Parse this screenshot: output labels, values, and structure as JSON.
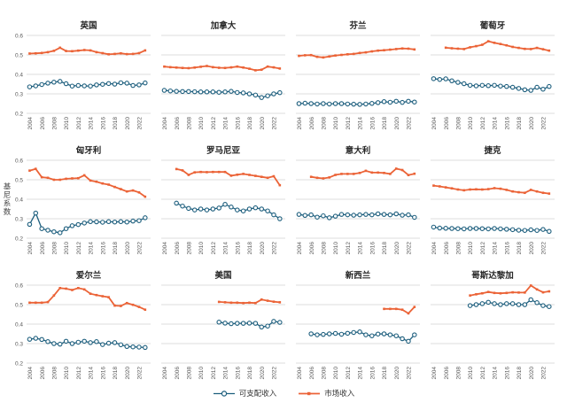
{
  "figure": {
    "legend": [
      {
        "label": "可支配收入",
        "marker": "open-circle",
        "color": "#1E5F7E"
      },
      {
        "label": "市场收入",
        "marker": "square-dash",
        "color": "#EB6337"
      }
    ],
    "colors": {
      "disposable": "#1E5F7E",
      "market": "#EB6337",
      "marker_fill": "#FFFFFF",
      "gridline": "#DEDEDE",
      "tick_text": "#595959",
      "title_text": "#262626",
      "background": "#FFFFFF"
    }
  },
  "chart_data": {
    "type": "line",
    "ylabel": "基尼系数",
    "ylim": [
      0.2,
      0.6
    ],
    "xlim": [
      2003.5,
      2023.9
    ],
    "y_ticks": [
      "0.6",
      "0.5",
      "0.4",
      "0.3",
      "0.2"
    ],
    "x_ticks": [
      2004,
      2006,
      2008,
      2010,
      2012,
      2014,
      2016,
      2018,
      2020,
      2022
    ],
    "grid": true,
    "legend_position": "bottom-center",
    "series_names": {
      "disposable": "可支配收入",
      "market": "市场收入"
    },
    "panels": [
      {
        "title": "英国",
        "series": [
          {
            "key": "disposable",
            "name": "可支配收入",
            "start_year": 2004,
            "values": [
              0.336,
              0.341,
              0.348,
              0.355,
              0.36,
              0.364,
              0.352,
              0.34,
              0.343,
              0.341,
              0.34,
              0.346,
              0.349,
              0.353,
              0.35,
              0.357,
              0.355,
              0.343,
              0.346,
              0.356
            ]
          },
          {
            "key": "market",
            "name": "市场收入",
            "start_year": 2004,
            "values": [
              0.507,
              0.508,
              0.51,
              0.514,
              0.521,
              0.537,
              0.52,
              0.519,
              0.522,
              0.525,
              0.523,
              0.514,
              0.509,
              0.503,
              0.505,
              0.508,
              0.504,
              0.505,
              0.509,
              0.523
            ]
          }
        ]
      },
      {
        "title": "加拿大",
        "series": [
          {
            "key": "disposable",
            "name": "可支配收入",
            "start_year": 2004,
            "values": [
              0.318,
              0.315,
              0.313,
              0.312,
              0.312,
              0.311,
              0.31,
              0.31,
              0.31,
              0.308,
              0.31,
              0.313,
              0.307,
              0.305,
              0.3,
              0.294,
              0.281,
              0.29,
              0.3,
              0.306
            ]
          },
          {
            "key": "market",
            "name": "市场收入",
            "start_year": 2004,
            "values": [
              0.44,
              0.437,
              0.435,
              0.433,
              0.432,
              0.435,
              0.439,
              0.443,
              0.437,
              0.434,
              0.433,
              0.436,
              0.44,
              0.435,
              0.429,
              0.421,
              0.424,
              0.44,
              0.436,
              0.43
            ]
          }
        ]
      },
      {
        "title": "芬兰",
        "series": [
          {
            "key": "disposable",
            "name": "可支配收入",
            "start_year": 2004,
            "values": [
              0.25,
              0.252,
              0.25,
              0.248,
              0.25,
              0.248,
              0.25,
              0.25,
              0.248,
              0.247,
              0.246,
              0.248,
              0.251,
              0.255,
              0.26,
              0.257,
              0.262,
              0.256,
              0.262,
              0.258
            ]
          },
          {
            "key": "market",
            "name": "市场收入",
            "start_year": 2004,
            "values": [
              0.495,
              0.498,
              0.499,
              0.49,
              0.487,
              0.492,
              0.497,
              0.5,
              0.503,
              0.505,
              0.51,
              0.513,
              0.518,
              0.522,
              0.524,
              0.527,
              0.53,
              0.533,
              0.532,
              0.528
            ]
          }
        ]
      },
      {
        "title": "葡萄牙",
        "series": [
          {
            "key": "disposable",
            "name": "可支配收入",
            "start_year": 2004,
            "values": [
              0.378,
              0.374,
              0.377,
              0.367,
              0.359,
              0.352,
              0.344,
              0.341,
              0.344,
              0.342,
              0.344,
              0.34,
              0.338,
              0.334,
              0.328,
              0.321,
              0.318,
              0.334,
              0.324,
              0.338
            ]
          },
          {
            "key": "market",
            "name": "市场收入",
            "start_year": 2006,
            "values": [
              0.537,
              0.534,
              0.532,
              0.53,
              0.539,
              0.545,
              0.552,
              0.57,
              0.562,
              0.556,
              0.549,
              0.541,
              0.536,
              0.531,
              0.53,
              0.536,
              0.529,
              0.522
            ]
          }
        ]
      },
      {
        "title": "匈牙利",
        "series": [
          {
            "key": "disposable",
            "name": "可支配收入",
            "start_year": 2004,
            "values": [
              0.271,
              0.329,
              0.249,
              0.241,
              0.233,
              0.228,
              0.249,
              0.264,
              0.27,
              0.278,
              0.285,
              0.284,
              0.282,
              0.285,
              0.283,
              0.285,
              0.283,
              0.288,
              0.29,
              0.305
            ]
          },
          {
            "key": "market",
            "name": "市场收入",
            "start_year": 2004,
            "values": [
              0.547,
              0.556,
              0.513,
              0.51,
              0.5,
              0.5,
              0.505,
              0.507,
              0.508,
              0.523,
              0.496,
              0.49,
              0.481,
              0.475,
              0.463,
              0.452,
              0.44,
              0.445,
              0.435,
              0.413
            ]
          }
        ]
      },
      {
        "title": "罗马尼亚",
        "series": [
          {
            "key": "disposable",
            "name": "可支配收入",
            "start_year": 2006,
            "values": [
              0.38,
              0.365,
              0.353,
              0.345,
              0.35,
              0.345,
              0.35,
              0.355,
              0.374,
              0.36,
              0.345,
              0.34,
              0.35,
              0.356,
              0.35,
              0.34,
              0.32,
              0.3
            ]
          },
          {
            "key": "market",
            "name": "市场收入",
            "start_year": 2006,
            "values": [
              0.555,
              0.548,
              0.525,
              0.538,
              0.54,
              0.539,
              0.54,
              0.54,
              0.54,
              0.521,
              0.526,
              0.53,
              0.525,
              0.52,
              0.515,
              0.51,
              0.518,
              0.472
            ]
          }
        ]
      },
      {
        "title": "意大利",
        "series": [
          {
            "key": "disposable",
            "name": "可支配收入",
            "start_year": 2004,
            "values": [
              0.322,
              0.317,
              0.32,
              0.308,
              0.315,
              0.305,
              0.313,
              0.322,
              0.32,
              0.318,
              0.32,
              0.322,
              0.32,
              0.325,
              0.322,
              0.32,
              0.325,
              0.318,
              0.32,
              0.307
            ]
          },
          {
            "key": "market",
            "name": "市场收入",
            "start_year": 2006,
            "values": [
              0.515,
              0.51,
              0.507,
              0.512,
              0.525,
              0.53,
              0.53,
              0.53,
              0.535,
              0.546,
              0.537,
              0.537,
              0.535,
              0.53,
              0.557,
              0.55,
              0.524,
              0.531
            ]
          }
        ]
      },
      {
        "title": "捷克",
        "series": [
          {
            "key": "disposable",
            "name": "可支配收入",
            "start_year": 2004,
            "values": [
              0.257,
              0.252,
              0.251,
              0.25,
              0.249,
              0.248,
              0.25,
              0.25,
              0.249,
              0.248,
              0.25,
              0.248,
              0.246,
              0.244,
              0.241,
              0.24,
              0.243,
              0.24,
              0.245,
              0.235
            ]
          },
          {
            "key": "market",
            "name": "市场收入",
            "start_year": 2004,
            "values": [
              0.47,
              0.466,
              0.461,
              0.456,
              0.45,
              0.446,
              0.45,
              0.451,
              0.45,
              0.452,
              0.457,
              0.454,
              0.448,
              0.44,
              0.436,
              0.433,
              0.448,
              0.44,
              0.433,
              0.429
            ]
          }
        ]
      },
      {
        "title": "爱尔兰",
        "series": [
          {
            "key": "disposable",
            "name": "可支配收入",
            "start_year": 2004,
            "values": [
              0.322,
              0.327,
              0.321,
              0.31,
              0.3,
              0.297,
              0.312,
              0.3,
              0.307,
              0.312,
              0.305,
              0.31,
              0.295,
              0.302,
              0.305,
              0.294,
              0.285,
              0.283,
              0.282,
              0.28
            ]
          },
          {
            "key": "market",
            "name": "市场收入",
            "start_year": 2004,
            "values": [
              0.51,
              0.51,
              0.51,
              0.513,
              0.547,
              0.585,
              0.582,
              0.575,
              0.585,
              0.578,
              0.556,
              0.549,
              0.543,
              0.538,
              0.495,
              0.493,
              0.508,
              0.499,
              0.488,
              0.474
            ]
          }
        ]
      },
      {
        "title": "美国",
        "series": [
          {
            "key": "disposable",
            "name": "可支配收入",
            "start_year": 2013,
            "values": [
              0.41,
              0.405,
              0.402,
              0.404,
              0.404,
              0.405,
              0.404,
              0.385,
              0.39,
              0.414,
              0.409
            ]
          },
          {
            "key": "market",
            "name": "市场收入",
            "start_year": 2013,
            "values": [
              0.514,
              0.512,
              0.51,
              0.51,
              0.508,
              0.51,
              0.508,
              0.526,
              0.52,
              0.515,
              0.512
            ]
          }
        ]
      },
      {
        "title": "新西兰",
        "series": [
          {
            "key": "disposable",
            "name": "可支配收入",
            "start_year": 2006,
            "values": [
              0.35,
              0.345,
              0.347,
              0.35,
              0.352,
              0.348,
              0.353,
              0.357,
              0.36,
              0.345,
              0.34,
              0.349,
              0.35,
              0.345,
              0.34,
              0.325,
              0.312,
              0.345
            ]
          },
          {
            "key": "market",
            "name": "市场收入",
            "start_year": 2018,
            "values": [
              0.478,
              0.478,
              0.478,
              0.474,
              0.455,
              0.488
            ]
          }
        ]
      },
      {
        "title": "哥斯达黎加",
        "series": [
          {
            "key": "disposable",
            "name": "可支配收入",
            "start_year": 2010,
            "values": [
              0.495,
              0.5,
              0.505,
              0.512,
              0.505,
              0.5,
              0.505,
              0.505,
              0.5,
              0.5,
              0.525,
              0.51,
              0.495,
              0.49
            ]
          },
          {
            "key": "market",
            "name": "市场收入",
            "start_year": 2010,
            "values": [
              0.547,
              0.553,
              0.558,
              0.565,
              0.56,
              0.558,
              0.56,
              0.563,
              0.562,
              0.562,
              0.598,
              0.578,
              0.563,
              0.568
            ]
          }
        ]
      }
    ]
  }
}
